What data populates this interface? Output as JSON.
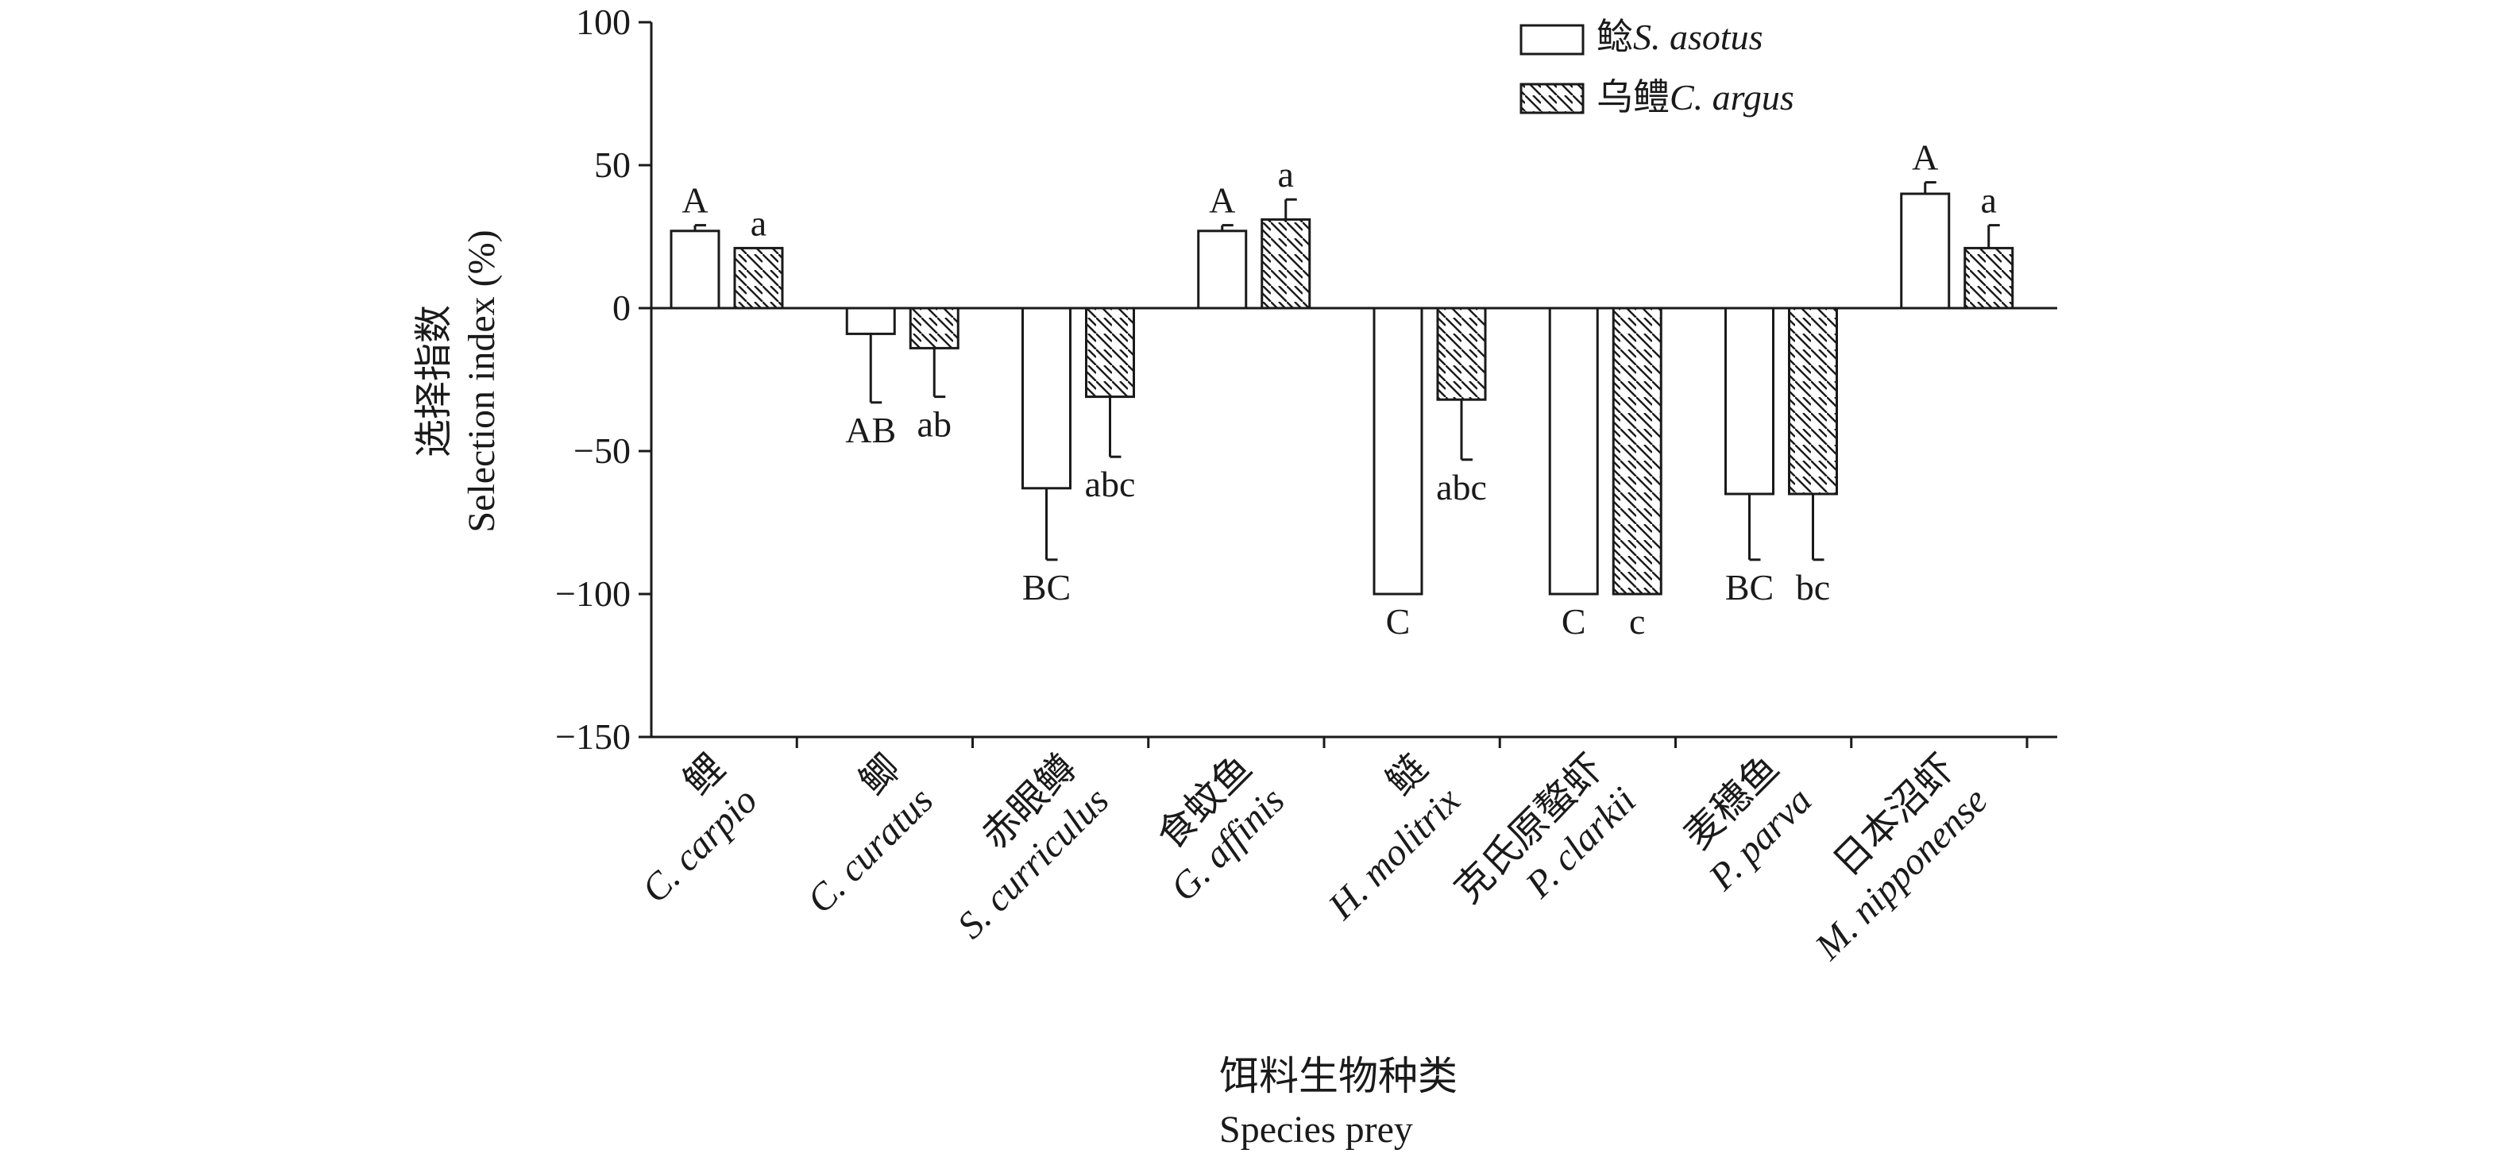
{
  "chart_data": {
    "type": "bar",
    "title": "",
    "ylabel_cn": "选择指数",
    "ylabel_en": "Selection index (%)",
    "xlabel_cn": "饵料生物种类",
    "xlabel_en": "Species prey",
    "ylim": [
      -150,
      100
    ],
    "yticks": [
      100,
      50,
      0,
      -50,
      -100,
      -150
    ],
    "ytick_labels": [
      "100",
      "50",
      "0",
      "−50",
      "−100",
      "−150"
    ],
    "grid": false,
    "legend": "top-right",
    "categories": [
      {
        "cn": "鲤",
        "en": "C. carpio"
      },
      {
        "cn": "鲫",
        "en": "C. curatus"
      },
      {
        "cn": "赤眼鳟",
        "en": "S. curriculus"
      },
      {
        "cn": "食蚊鱼",
        "en": "G. affinis"
      },
      {
        "cn": "鲢",
        "en": "H. molitrix"
      },
      {
        "cn": "克氏原螯虾",
        "en": "P. clarkii"
      },
      {
        "cn": "麦穗鱼",
        "en": "P. parva"
      },
      {
        "cn": "日本沼虾",
        "en": "M. nipponense"
      }
    ],
    "series": [
      {
        "name_cn": "鲶",
        "name_en": "S. asotus",
        "pattern": "open",
        "values": [
          27,
          -9,
          -63,
          27,
          -100,
          -100,
          -65,
          40
        ],
        "errors": [
          2,
          24,
          25,
          2,
          0,
          0,
          23,
          4
        ],
        "letters": [
          "A",
          "AB",
          "BC",
          "A",
          "C",
          "C",
          "BC",
          "A"
        ]
      },
      {
        "name_cn": "乌鳢",
        "name_en": "C. argus",
        "pattern": "hatched",
        "values": [
          21,
          -14,
          -31,
          31,
          -32,
          -100,
          -65,
          21
        ],
        "errors": [
          0,
          17,
          21,
          7,
          21,
          0,
          23,
          8
        ],
        "letters": [
          "a",
          "ab",
          "abc",
          "a",
          "abc",
          "c",
          "bc",
          "a"
        ]
      }
    ]
  }
}
